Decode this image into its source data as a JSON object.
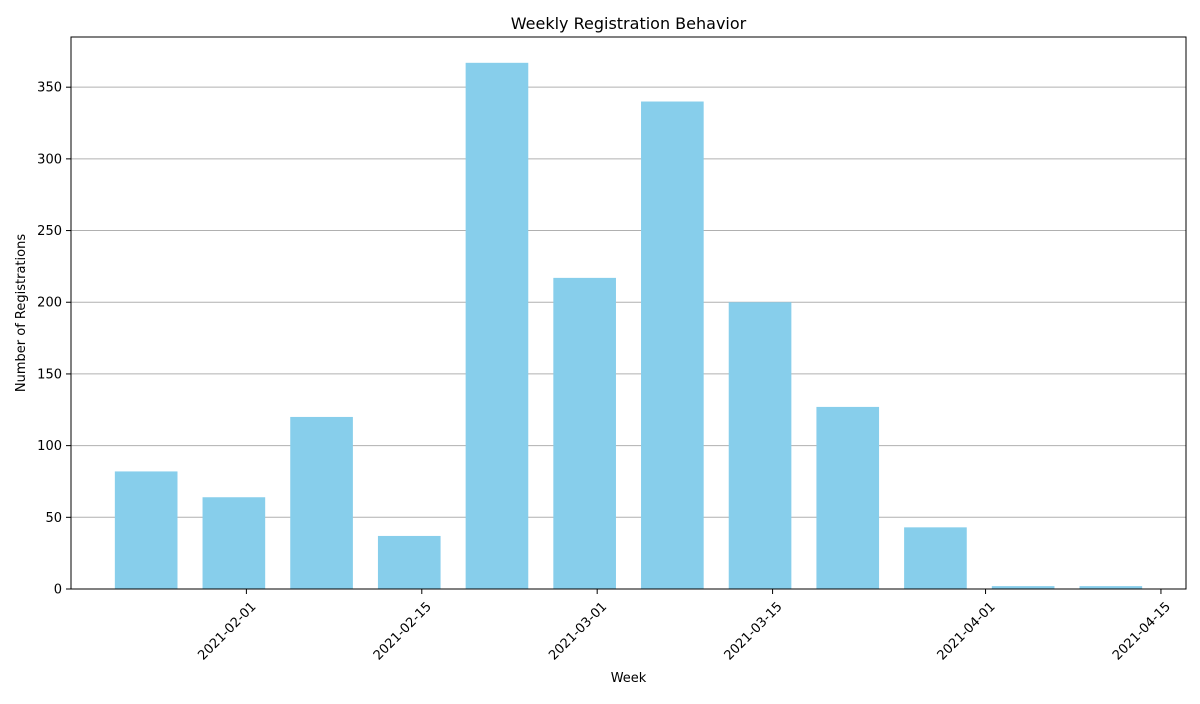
{
  "chart_data": {
    "type": "bar",
    "title": "Weekly Registration Behavior",
    "xlabel": "Week",
    "ylabel": "Number of Registrations",
    "x_axis_type": "date",
    "xlim": [
      "2021-01-18",
      "2021-04-17"
    ],
    "ylim": [
      0,
      385
    ],
    "y_ticks": [
      0,
      50,
      100,
      150,
      200,
      250,
      300,
      350
    ],
    "x_ticks": [
      "2021-02-01",
      "2021-02-15",
      "2021-03-01",
      "2021-03-15",
      "2021-04-01",
      "2021-04-15"
    ],
    "x_tick_rotation": 45,
    "bar_color": "#87CEEB",
    "grid": {
      "axis": "y",
      "color": "#b0b0b0"
    },
    "bar_width_days": 5,
    "bars": [
      {
        "week": "2021-01-24",
        "value": 82
      },
      {
        "week": "2021-01-31",
        "value": 64
      },
      {
        "week": "2021-02-07",
        "value": 120
      },
      {
        "week": "2021-02-14",
        "value": 37
      },
      {
        "week": "2021-02-21",
        "value": 367
      },
      {
        "week": "2021-02-28",
        "value": 217
      },
      {
        "week": "2021-03-07",
        "value": 340
      },
      {
        "week": "2021-03-14",
        "value": 200
      },
      {
        "week": "2021-03-21",
        "value": 127
      },
      {
        "week": "2021-03-28",
        "value": 43
      },
      {
        "week": "2021-04-04",
        "value": 2
      },
      {
        "week": "2021-04-11",
        "value": 2
      }
    ]
  }
}
